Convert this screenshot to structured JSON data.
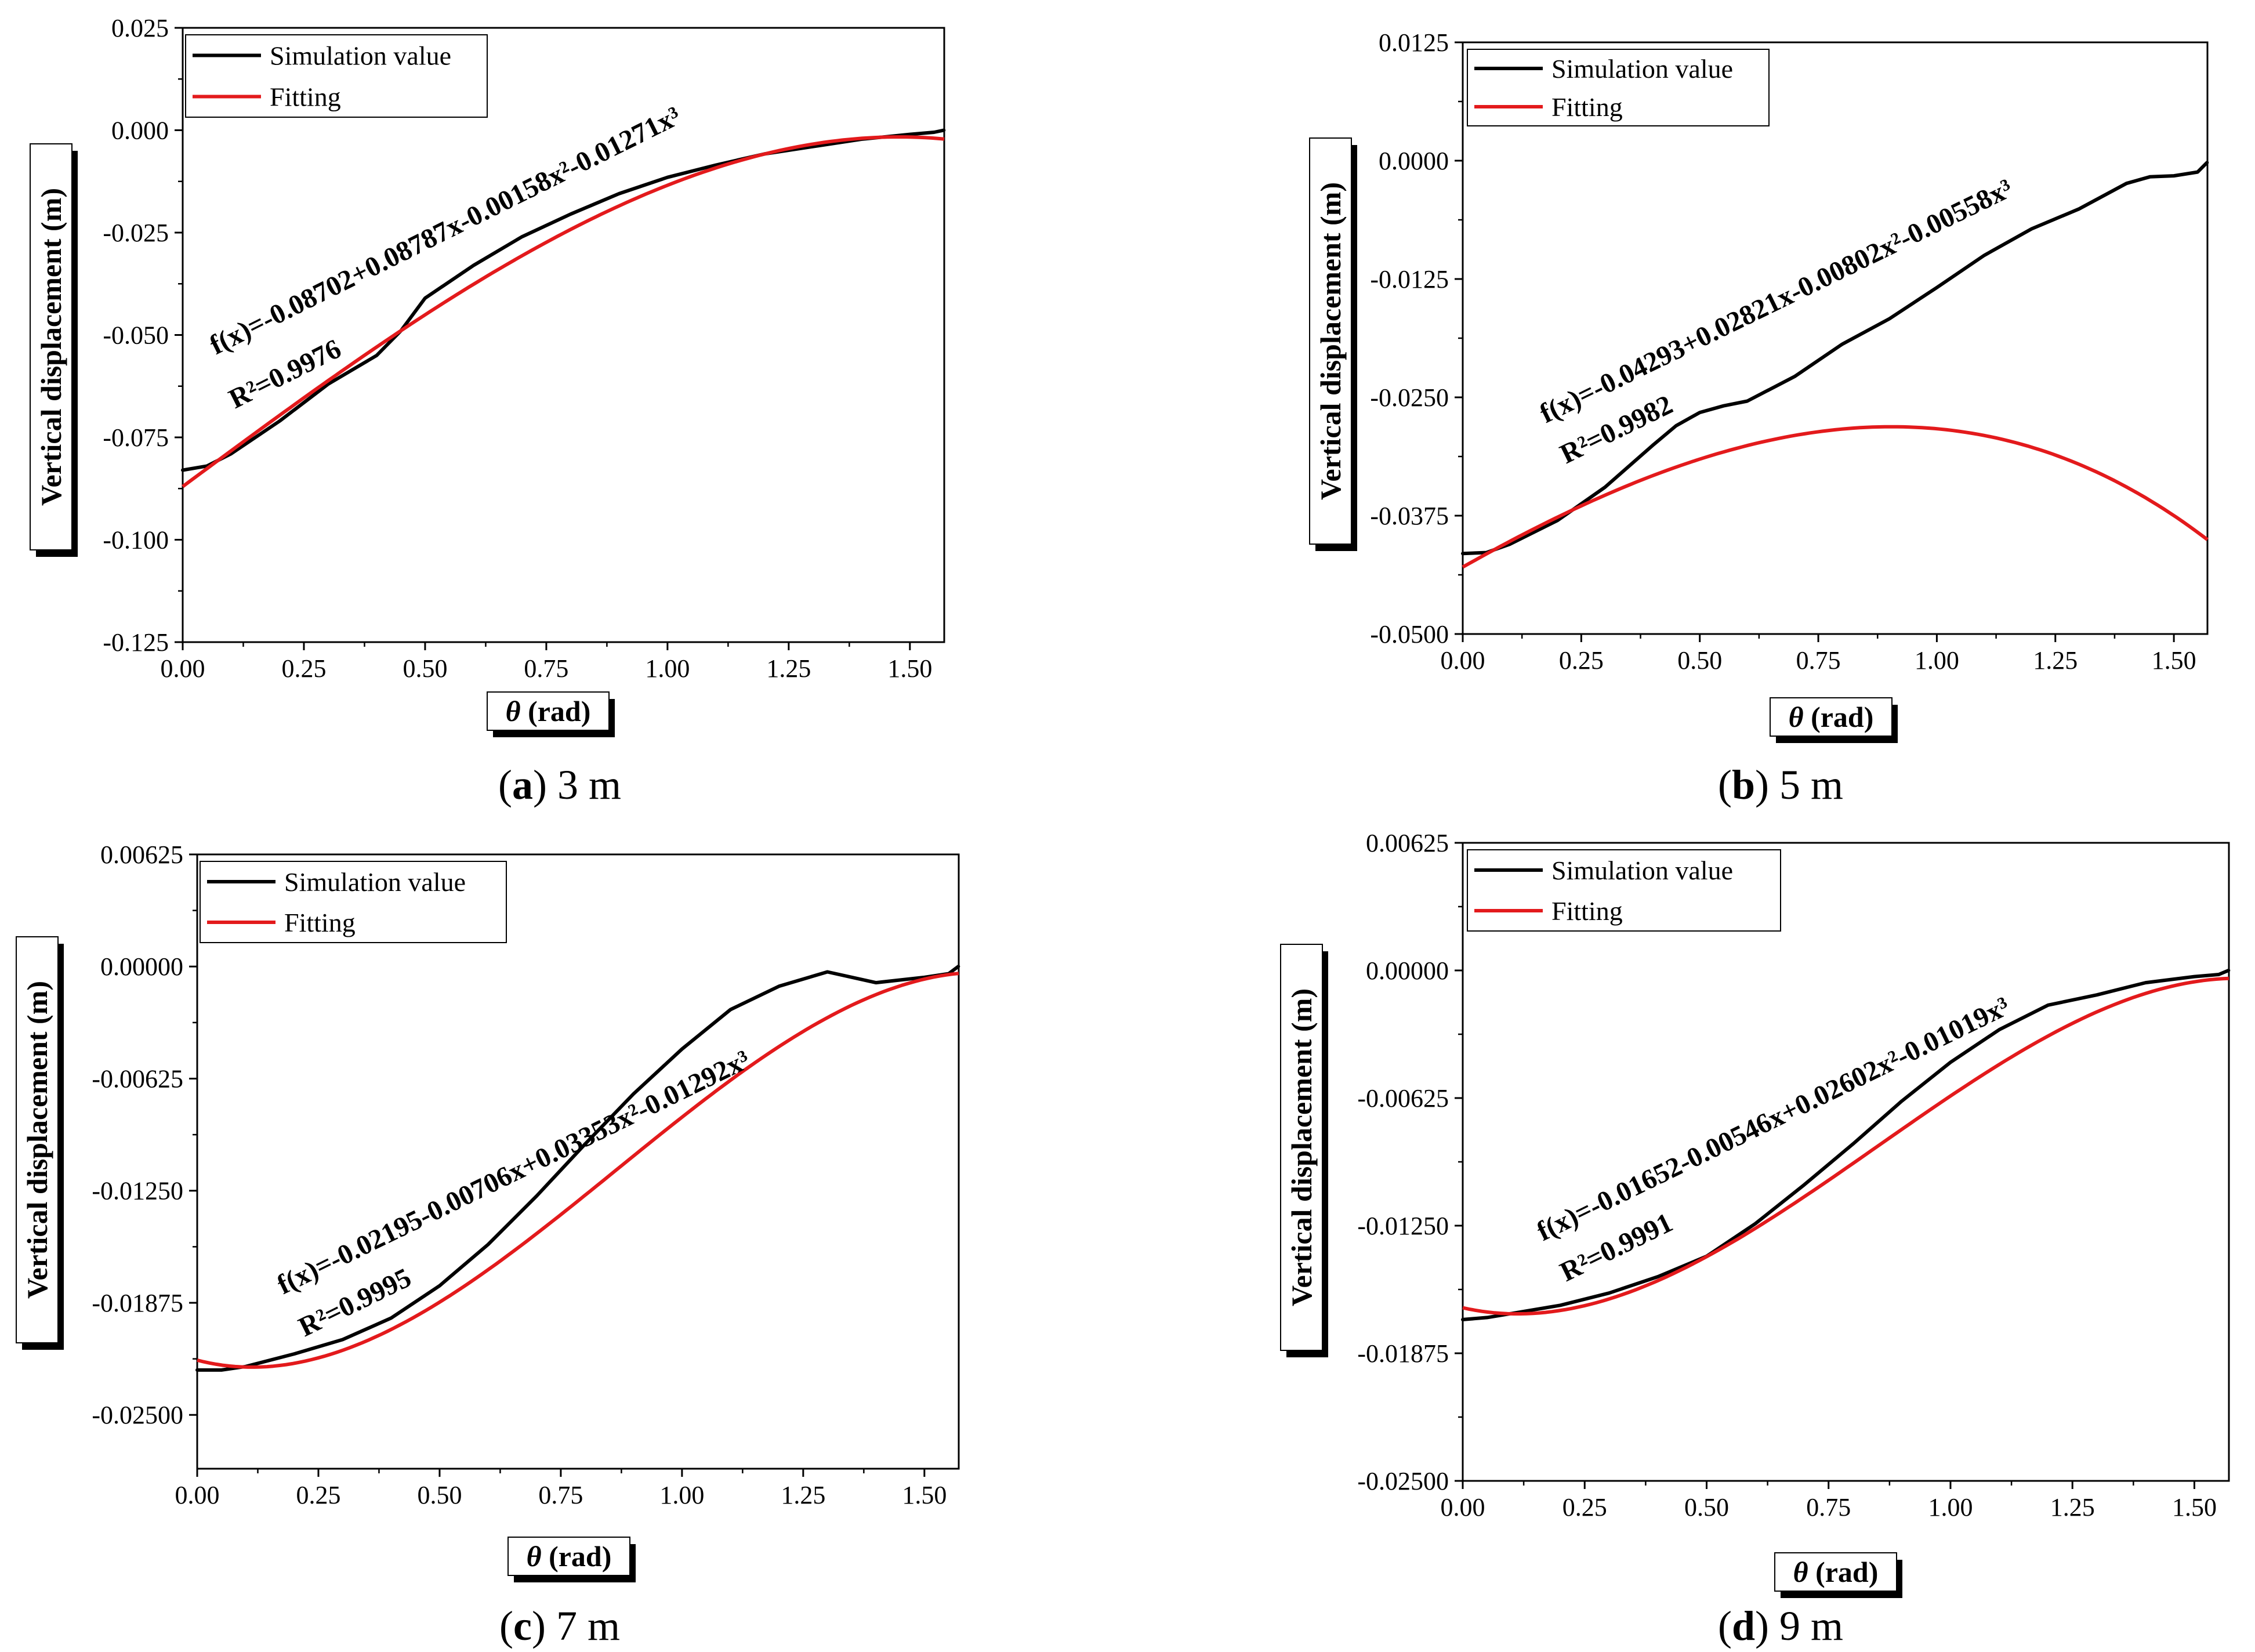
{
  "figure": {
    "legend_labels": [
      "Simulation value",
      "Fitting"
    ],
    "colors": {
      "simulation": "#000000",
      "fitting": "#e31a1c"
    }
  },
  "chart_data": [
    {
      "type": "line",
      "panel": "a",
      "caption_letter": "a",
      "caption_rest": ") 3 m",
      "xlabel_symbol": "θ",
      "xlabel_rest": " (rad)",
      "ylabel": "Vertical displacement (m)",
      "xlim": [
        0,
        1.5708
      ],
      "ylim": [
        -0.125,
        0.025
      ],
      "x_ticks": [
        0,
        0.25,
        0.5,
        0.75,
        1.0,
        1.25,
        1.5
      ],
      "x_tick_labels": [
        "0.00",
        "0.25",
        "0.50",
        "0.75",
        "1.00",
        "1.25",
        "1.50"
      ],
      "y_ticks": [
        0.025,
        0.0,
        -0.025,
        -0.05,
        -0.075,
        -0.1,
        -0.125
      ],
      "y_tick_labels": [
        "0.025",
        "0.000",
        "-0.025",
        "-0.050",
        "-0.075",
        "-0.100",
        "-0.125"
      ],
      "equation": "f(x)=-0.08702+0.08787x-0.00158x²-0.01271x³",
      "r2": "R²=0.9976",
      "coefficients": [
        -0.08702,
        0.08787,
        -0.00158,
        -0.01271
      ],
      "series": [
        {
          "name": "Simulation value",
          "x": [
            0.0,
            0.05,
            0.1,
            0.2,
            0.3,
            0.4,
            0.45,
            0.5,
            0.6,
            0.7,
            0.8,
            0.9,
            1.0,
            1.1,
            1.2,
            1.3,
            1.4,
            1.5,
            1.55,
            1.57
          ],
          "y": [
            -0.083,
            -0.082,
            -0.079,
            -0.071,
            -0.062,
            -0.055,
            -0.049,
            -0.041,
            -0.033,
            -0.026,
            -0.0205,
            -0.0155,
            -0.0115,
            -0.0085,
            -0.0058,
            -0.004,
            -0.0022,
            -0.001,
            -0.0005,
            0.0
          ]
        },
        {
          "name": "Fitting"
        }
      ]
    },
    {
      "type": "line",
      "panel": "b",
      "caption_letter": "b",
      "caption_rest": ") 5 m",
      "xlabel_symbol": "θ",
      "xlabel_rest": " (rad)",
      "ylabel": "Vertical displacement (m)",
      "xlim": [
        0,
        1.5708
      ],
      "ylim": [
        -0.05,
        0.0125
      ],
      "x_ticks": [
        0,
        0.25,
        0.5,
        0.75,
        1.0,
        1.25,
        1.5
      ],
      "x_tick_labels": [
        "0.00",
        "0.25",
        "0.50",
        "0.75",
        "1.00",
        "1.25",
        "1.50"
      ],
      "y_ticks": [
        0.0125,
        0.0,
        -0.0125,
        -0.025,
        -0.0375,
        -0.05
      ],
      "y_tick_labels": [
        "0.0125",
        "0.0000",
        "-0.0125",
        "-0.0250",
        "-0.0375",
        "-0.0500"
      ],
      "equation": "f(x)=-0.04293+0.02821x-0.00802x²-0.00558x³",
      "r2": "R²=0.9982",
      "coefficients": [
        -0.04293,
        0.02821,
        -0.00802,
        -0.00558
      ],
      "series": [
        {
          "name": "Simulation value",
          "x": [
            0.0,
            0.05,
            0.1,
            0.2,
            0.3,
            0.4,
            0.45,
            0.5,
            0.55,
            0.6,
            0.7,
            0.8,
            0.9,
            1.0,
            1.1,
            1.2,
            1.3,
            1.4,
            1.45,
            1.5,
            1.55,
            1.57
          ],
          "y": [
            -0.0415,
            -0.0414,
            -0.0405,
            -0.038,
            -0.0345,
            -0.0301,
            -0.028,
            -0.0266,
            -0.0259,
            -0.0254,
            -0.0228,
            -0.0194,
            -0.0167,
            -0.0134,
            -0.01,
            -0.0072,
            -0.0051,
            -0.0024,
            -0.0017,
            -0.0016,
            -0.0012,
            -0.0002
          ]
        },
        {
          "name": "Fitting"
        }
      ]
    },
    {
      "type": "line",
      "panel": "c",
      "caption_letter": "c",
      "caption_rest": ") 7 m",
      "xlabel_symbol": "θ",
      "xlabel_rest": " (rad)",
      "ylabel": "Vertical displacement (m)",
      "xlim": [
        0,
        1.5708
      ],
      "ylim": [
        -0.028,
        0.00625
      ],
      "x_ticks": [
        0,
        0.25,
        0.5,
        0.75,
        1.0,
        1.25,
        1.5
      ],
      "x_tick_labels": [
        "0.00",
        "0.25",
        "0.50",
        "0.75",
        "1.00",
        "1.25",
        "1.50"
      ],
      "y_ticks": [
        0.00625,
        0.0,
        -0.00625,
        -0.0125,
        -0.01875,
        -0.025
      ],
      "y_tick_labels": [
        "0.00625",
        "0.00000",
        "-0.00625",
        "-0.01250",
        "-0.01875",
        "-0.02500"
      ],
      "equation": "f(x)=-0.02195-0.00706x+0.03353x²-0.01292x³",
      "r2": "R²=0.9995",
      "coefficients": [
        -0.02195,
        -0.00706,
        0.03353,
        -0.01292
      ],
      "series": [
        {
          "name": "Simulation value",
          "x": [
            0.0,
            0.05,
            0.1,
            0.2,
            0.3,
            0.4,
            0.5,
            0.6,
            0.7,
            0.8,
            0.9,
            1.0,
            1.1,
            1.2,
            1.3,
            1.4,
            1.5,
            1.55,
            1.57
          ],
          "y": [
            -0.0225,
            -0.0225,
            -0.0223,
            -0.0216,
            -0.0208,
            -0.0196,
            -0.0178,
            -0.0155,
            -0.0128,
            -0.0099,
            -0.0071,
            -0.0046,
            -0.0024,
            -0.0011,
            -0.0003,
            -0.0009,
            -0.0006,
            -0.0004,
            0.0
          ]
        },
        {
          "name": "Fitting"
        }
      ]
    },
    {
      "type": "line",
      "panel": "d",
      "caption_letter": "d",
      "caption_rest": ") 9 m",
      "xlabel_symbol": "θ",
      "xlabel_rest": " (rad)",
      "ylabel": "Vertical displacement (m)",
      "xlim": [
        0,
        1.5708
      ],
      "ylim": [
        -0.025,
        0.00625
      ],
      "x_ticks": [
        0,
        0.25,
        0.5,
        0.75,
        1.0,
        1.25,
        1.5
      ],
      "x_tick_labels": [
        "0.00",
        "0.25",
        "0.50",
        "0.75",
        "1.00",
        "1.25",
        "1.50"
      ],
      "y_ticks": [
        0.00625,
        0.0,
        -0.00625,
        -0.0125,
        -0.01875,
        -0.025
      ],
      "y_tick_labels": [
        "0.00625",
        "0.00000",
        "-0.00625",
        "-0.01250",
        "-0.01875",
        "-0.02500"
      ],
      "equation": "f(x)=-0.01652-0.00546x+0.02602x²-0.01019x³",
      "r2": "R²=0.9991",
      "coefficients": [
        -0.01652,
        -0.00546,
        0.02602,
        -0.01019
      ],
      "series": [
        {
          "name": "Simulation value",
          "x": [
            0.0,
            0.05,
            0.1,
            0.2,
            0.3,
            0.4,
            0.5,
            0.6,
            0.7,
            0.8,
            0.9,
            1.0,
            1.1,
            1.2,
            1.3,
            1.4,
            1.5,
            1.55,
            1.57
          ],
          "y": [
            -0.0171,
            -0.017,
            -0.0168,
            -0.0164,
            -0.0158,
            -0.015,
            -0.014,
            -0.0124,
            -0.0105,
            -0.0085,
            -0.0064,
            -0.0045,
            -0.0029,
            -0.0017,
            -0.0012,
            -0.0006,
            -0.0003,
            -0.0002,
            0.0
          ]
        },
        {
          "name": "Fitting"
        }
      ]
    }
  ]
}
